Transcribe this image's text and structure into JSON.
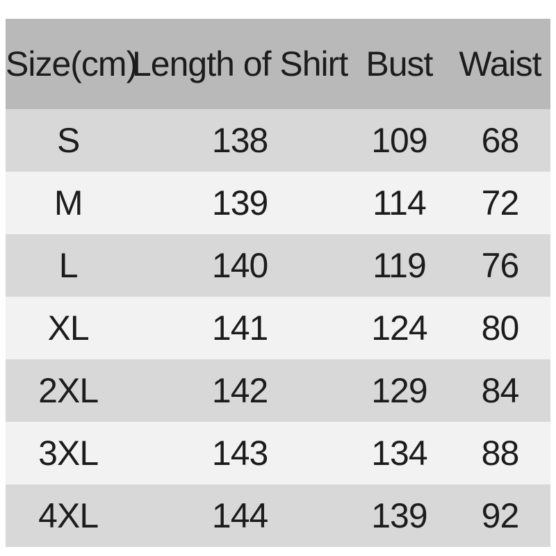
{
  "colors": {
    "page_bg": "#ffffff",
    "header_bg": "#b9b9b9",
    "row_gray_bg": "#d8d8d8",
    "row_light_bg": "#f2f2f2",
    "text": "#1c1c1c"
  },
  "chart_data": {
    "type": "table",
    "title": "",
    "columns": [
      "Size(cm)",
      "Length of Shirt",
      "Bust",
      "Waist"
    ],
    "rows": [
      [
        "S",
        "138",
        "109",
        "68"
      ],
      [
        "M",
        "139",
        "114",
        "72"
      ],
      [
        "L",
        "140",
        "119",
        "76"
      ],
      [
        "XL",
        "141",
        "124",
        "80"
      ],
      [
        "2XL",
        "142",
        "129",
        "84"
      ],
      [
        "3XL",
        "143",
        "134",
        "88"
      ],
      [
        "4XL",
        "144",
        "139",
        "92"
      ]
    ],
    "layout": {
      "first_data_row_shade": "gray",
      "stripe_pattern": "alternating gray/light starting gray",
      "units": "cm"
    }
  }
}
